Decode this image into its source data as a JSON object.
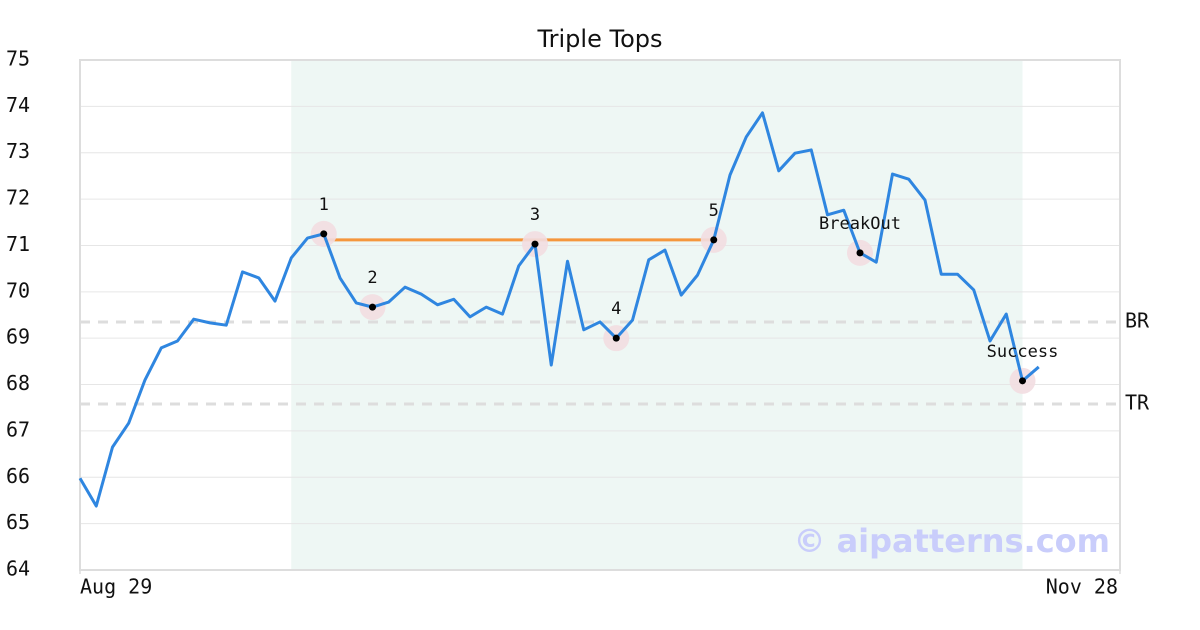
{
  "chart_data": {
    "type": "line",
    "title": "Triple Tops",
    "x": [
      0,
      1,
      2,
      3,
      4,
      5,
      6,
      7,
      8,
      9,
      10,
      11,
      12,
      13,
      14,
      15,
      16,
      17,
      18,
      19,
      20,
      21,
      22,
      23,
      24,
      25,
      26,
      27,
      28,
      29,
      30,
      31,
      32,
      33,
      34,
      35,
      36,
      37,
      38,
      39,
      40,
      41,
      42,
      43,
      44,
      45,
      46,
      47,
      48,
      49,
      50,
      51,
      52,
      53,
      54,
      55,
      56,
      57,
      58,
      59
    ],
    "series": [
      {
        "color": "#2f86e0",
        "values": [
          65.98,
          65.38,
          66.65,
          67.17,
          68.1,
          68.79,
          68.94,
          69.41,
          69.33,
          69.28,
          70.43,
          70.3,
          69.8,
          70.73,
          71.16,
          71.25,
          70.3,
          69.76,
          69.67,
          69.78,
          70.1,
          69.95,
          69.72,
          69.84,
          69.46,
          69.67,
          69.52,
          70.56,
          71.03,
          68.42,
          70.66,
          69.18,
          69.35,
          69.0,
          69.39,
          70.69,
          70.9,
          69.93,
          70.36,
          71.12,
          72.52,
          73.34,
          73.86,
          72.61,
          72.99,
          73.06,
          71.66,
          71.76,
          70.84,
          70.64,
          72.54,
          72.43,
          71.98,
          70.38,
          70.38,
          70.04,
          68.94,
          69.52,
          68.08,
          68.38
        ]
      }
    ],
    "xlim": [
      0,
      64
    ],
    "xticks": [
      {
        "value": 0,
        "label": "Aug 29"
      },
      {
        "value": 64,
        "label": "Nov 28"
      }
    ],
    "ylim": [
      64,
      75
    ],
    "yticks": [
      64,
      65,
      66,
      67,
      68,
      69,
      70,
      71,
      72,
      73,
      74,
      75
    ],
    "grid": true,
    "shade": {
      "x": [
        13,
        58
      ],
      "color": "#eef7f4"
    },
    "resistance": {
      "x": [
        15,
        39
      ],
      "y": 71.12,
      "color": "#f5963c"
    },
    "hlines": [
      {
        "label": "BR",
        "value": 69.35
      },
      {
        "label": "TR",
        "value": 67.58
      }
    ],
    "annotations": [
      {
        "label": "1",
        "x": 15,
        "y": 71.25
      },
      {
        "label": "2",
        "x": 18,
        "y": 69.67
      },
      {
        "label": "3",
        "x": 28,
        "y": 71.03
      },
      {
        "label": "4",
        "x": 33,
        "y": 69.0
      },
      {
        "label": "5",
        "x": 39,
        "y": 71.12
      },
      {
        "label": "BreakOut",
        "x": 48,
        "y": 70.84
      },
      {
        "label": "Success",
        "x": 58,
        "y": 68.08
      }
    ],
    "watermark": "© aipatterns.com"
  }
}
